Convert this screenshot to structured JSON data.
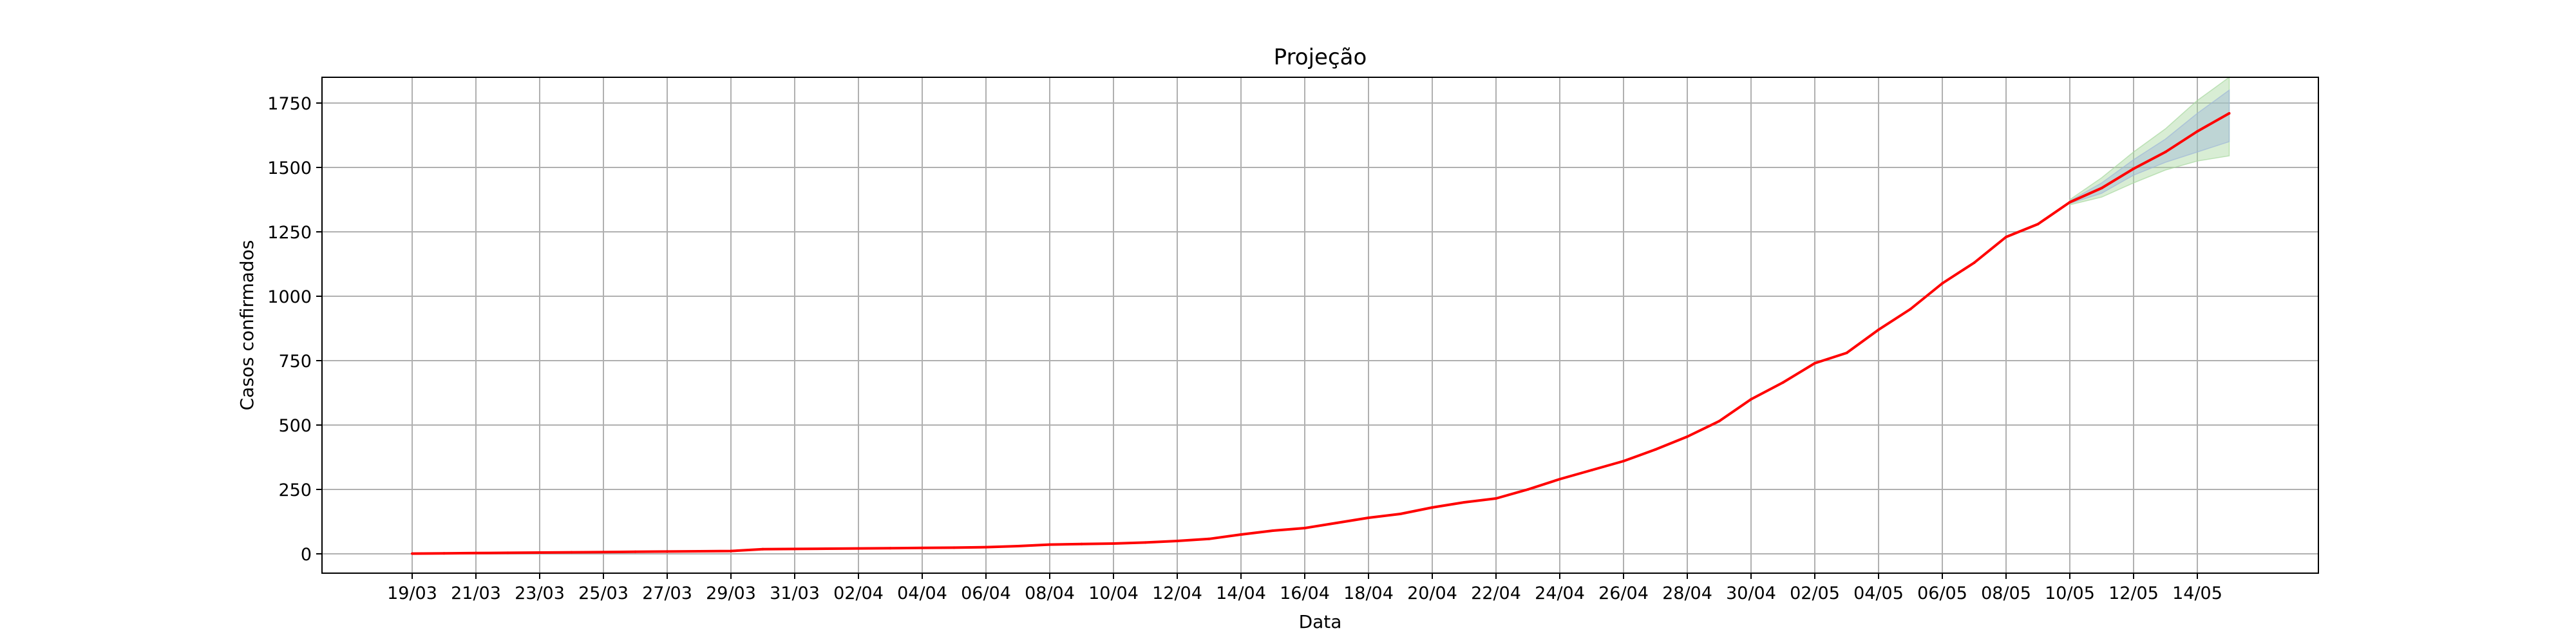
{
  "chart_data": {
    "type": "line",
    "title": "Projeção",
    "xlabel": "Data",
    "ylabel": "Casos confirmados",
    "grid": true,
    "ylim": [
      -75,
      1850
    ],
    "y_ticks": [
      0,
      250,
      500,
      750,
      1000,
      1250,
      1500,
      1750
    ],
    "x_ticks": [
      "19/03",
      "21/03",
      "23/03",
      "25/03",
      "27/03",
      "29/03",
      "31/03",
      "02/04",
      "04/04",
      "06/04",
      "08/04",
      "10/04",
      "12/04",
      "14/04",
      "16/04",
      "18/04",
      "20/04",
      "22/04",
      "24/04",
      "26/04",
      "28/04",
      "30/04",
      "02/05",
      "04/05",
      "06/05",
      "08/05",
      "10/05",
      "12/05",
      "14/05"
    ],
    "x": [
      "19/03",
      "20/03",
      "21/03",
      "22/03",
      "23/03",
      "24/03",
      "25/03",
      "26/03",
      "27/03",
      "28/03",
      "29/03",
      "30/03",
      "31/03",
      "01/04",
      "02/04",
      "03/04",
      "04/04",
      "05/04",
      "06/04",
      "07/04",
      "08/04",
      "09/04",
      "10/04",
      "11/04",
      "12/04",
      "13/04",
      "14/04",
      "15/04",
      "16/04",
      "17/04",
      "18/04",
      "19/04",
      "20/04",
      "21/04",
      "22/04",
      "23/04",
      "24/04",
      "25/04",
      "26/04",
      "27/04",
      "28/04",
      "29/04",
      "30/04",
      "01/05",
      "02/05",
      "03/05",
      "04/05",
      "05/05",
      "06/05",
      "07/05",
      "08/05",
      "09/05",
      "10/05",
      "11/05",
      "12/05",
      "13/05",
      "14/05",
      "15/05"
    ],
    "series": [
      {
        "color": "#ff0000",
        "values": [
          1,
          2,
          3,
          4,
          5,
          6,
          7,
          8,
          9,
          10,
          11,
          18,
          19,
          20,
          21,
          22,
          23,
          24,
          26,
          30,
          36,
          38,
          40,
          44,
          50,
          58,
          75,
          90,
          100,
          120,
          140,
          155,
          180,
          200,
          215,
          250,
          290,
          325,
          360,
          405,
          455,
          515,
          600,
          665,
          740,
          780,
          870,
          950,
          1050,
          1130,
          1230,
          1280,
          1365,
          1420,
          1495,
          1560,
          1640,
          1710
        ]
      }
    ],
    "bands": [
      {
        "color": "#a8d8a0",
        "x": [
          "10/05",
          "11/05",
          "12/05",
          "13/05",
          "14/05",
          "15/05"
        ],
        "lower": [
          1355,
          1385,
          1440,
          1490,
          1525,
          1545
        ],
        "upper": [
          1375,
          1460,
          1560,
          1650,
          1760,
          1850
        ]
      },
      {
        "color": "#a0b8d8",
        "x": [
          "10/05",
          "11/05",
          "12/05",
          "13/05",
          "14/05",
          "15/05"
        ],
        "lower": [
          1360,
          1400,
          1470,
          1520,
          1560,
          1600
        ],
        "upper": [
          1370,
          1440,
          1530,
          1610,
          1710,
          1800
        ]
      }
    ]
  }
}
